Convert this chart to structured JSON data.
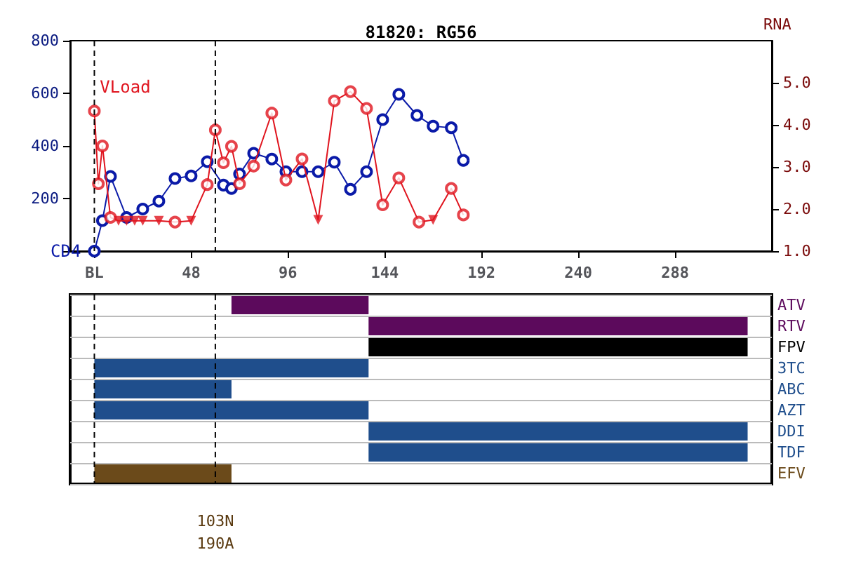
{
  "chart_data": [
    {
      "type": "line",
      "title": "81820: RG56",
      "y2label": "RNA",
      "xlim": [
        -12,
        336
      ],
      "xticks": [
        {
          "value": 0,
          "label": "BL"
        },
        48,
        96,
        144,
        192,
        240,
        288
      ],
      "ylim": [
        0,
        800
      ],
      "yticks": [
        {
          "value": 0,
          "label": null
        },
        200,
        400,
        600,
        800
      ],
      "y2lim": [
        1,
        6
      ],
      "y2ticks": [
        {
          "value": 1,
          "label": "1.0"
        },
        {
          "value": 2,
          "label": "2.0"
        },
        {
          "value": 3,
          "label": "3.0"
        },
        {
          "value": 4,
          "label": "4.0"
        },
        {
          "value": 5,
          "label": "5.0"
        }
      ],
      "grid": false,
      "legend": false,
      "series": [
        {
          "name": "CD4",
          "type": "line",
          "color": "#0a1aa8",
          "marker": "circle",
          "x": [
            0,
            4,
            8,
            16,
            24,
            32,
            40,
            48,
            56,
            64,
            68,
            72,
            79,
            88,
            95,
            103,
            111,
            119,
            127,
            135,
            143,
            151,
            160,
            168,
            177,
            183
          ],
          "values": [
            0,
            116,
            284,
            128,
            160,
            190,
            276,
            286,
            340,
            251,
            238,
            293,
            372,
            350,
            302,
            302,
            302,
            338,
            235,
            302,
            500,
            596,
            516,
            475,
            469,
            345
          ]
        },
        {
          "name": "VLoad",
          "type": "line",
          "axis": "y2",
          "color": "#e0141e",
          "marker": "none",
          "x": [
            0,
            2,
            4,
            8,
            12,
            16,
            20,
            24,
            32,
            40,
            48,
            56,
            60,
            64,
            68,
            72,
            79,
            88,
            95,
            103,
            111,
            119,
            127,
            135,
            143,
            151,
            161,
            168,
            177,
            183
          ],
          "values": [
            4.33,
            2.6,
            3.5,
            1.8,
            1.72,
            1.72,
            1.72,
            1.72,
            1.72,
            1.69,
            1.72,
            2.58,
            3.88,
            3.1,
            3.49,
            2.6,
            3.02,
            4.28,
            2.69,
            3.19,
            1.74,
            4.57,
            4.79,
            4.39,
            2.1,
            2.74,
            1.69,
            1.74,
            2.49,
            1.86
          ]
        },
        {
          "type": "scatter",
          "axis": "y2",
          "color": "#e0141e",
          "marker": "circle",
          "x": [
            0,
            2,
            4,
            8,
            40,
            56,
            60,
            64,
            68,
            72,
            79,
            88,
            95,
            103,
            119,
            127,
            135,
            143,
            151,
            161,
            177,
            183
          ],
          "values": [
            4.33,
            2.6,
            3.5,
            1.8,
            1.69,
            2.58,
            3.88,
            3.1,
            3.49,
            2.6,
            3.02,
            4.28,
            2.69,
            3.19,
            4.57,
            4.79,
            4.39,
            2.1,
            2.74,
            1.69,
            2.49,
            1.86
          ]
        },
        {
          "type": "scatter",
          "axis": "y2",
          "color": "#e0141e",
          "marker": "triangle",
          "x": [
            12,
            16,
            20,
            24,
            32,
            48,
            111,
            168
          ],
          "values": [
            1.72,
            1.72,
            1.72,
            1.72,
            1.72,
            1.72,
            1.74,
            1.74
          ]
        }
      ],
      "ref_lines": [
        {
          "axis": "x",
          "value": 0,
          "color": "#000000",
          "line_style": "dashed"
        },
        {
          "axis": "x",
          "value": 60,
          "color": "#000000",
          "line_style": "dashed"
        }
      ]
    },
    {
      "type": "bar",
      "orientation": "horizontal",
      "categories": [
        "ATV",
        "RTV",
        "FPV",
        "3TC",
        "ABC",
        "AZT",
        "DDI",
        "TDF",
        "EFV"
      ],
      "base": [
        68,
        136,
        136,
        0,
        0,
        0,
        136,
        136,
        0
      ],
      "values": [
        68,
        188,
        188,
        136,
        68,
        136,
        188,
        188,
        68
      ],
      "colors": [
        "#5c0a5c",
        "#5c0a5c",
        "#000000",
        "#1f4e8c",
        "#1f4e8c",
        "#1f4e8c",
        "#1f4e8c",
        "#1f4e8c",
        "#6b4a1a"
      ],
      "xlim": [
        -12,
        336
      ],
      "tick_labels": "y",
      "grid": "y",
      "legend": false,
      "ref_lines": [
        {
          "axis": "x",
          "value": 0,
          "color": "#000000",
          "line_style": "dashed"
        },
        {
          "axis": "x",
          "value": 60,
          "color": "#000000",
          "line_style": "dashed"
        }
      ],
      "annotations": [
        "103N",
        "190A"
      ]
    }
  ]
}
